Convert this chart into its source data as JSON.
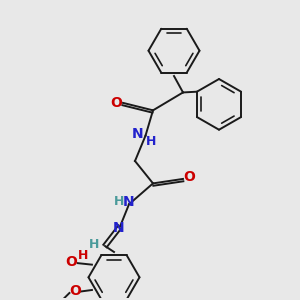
{
  "bg_color": "#e8e8e8",
  "bond_color": "#1a1a1a",
  "o_color": "#cc0000",
  "n_color": "#2222cc",
  "teal_color": "#4a9a9a",
  "figsize": [
    3.0,
    3.0
  ],
  "dpi": 100,
  "xlim": [
    0,
    10
  ],
  "ylim": [
    0,
    10
  ]
}
